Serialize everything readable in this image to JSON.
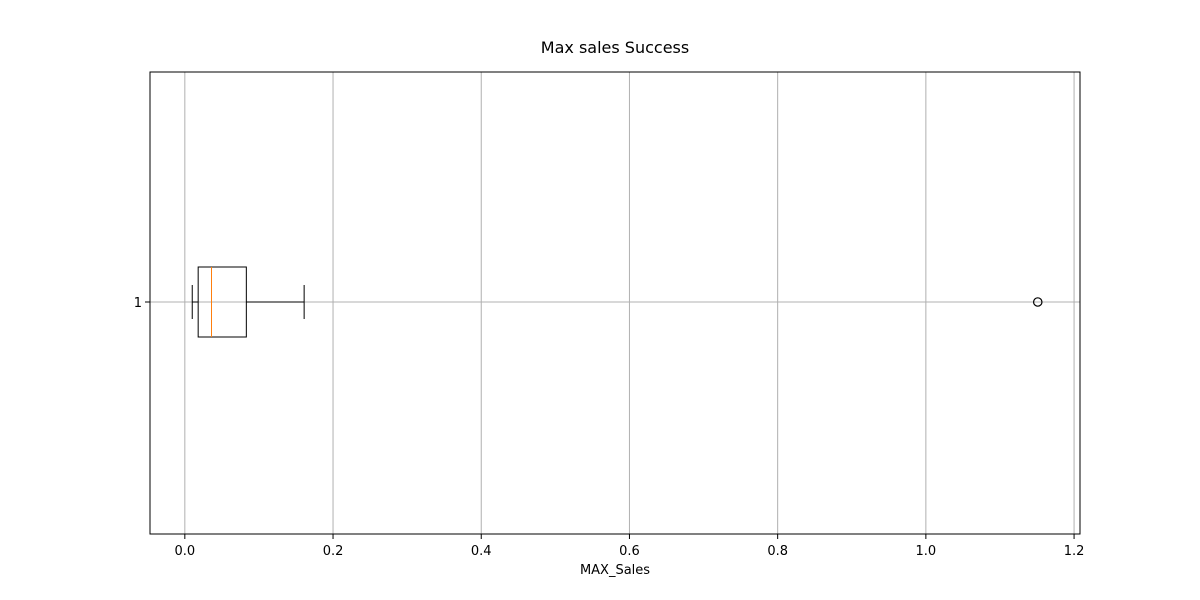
{
  "chart_data": {
    "type": "boxplot",
    "orientation": "horizontal",
    "title": "Max sales Success",
    "xlabel": "MAX_Sales",
    "ylabel": "",
    "xlim": [
      -0.047,
      1.208
    ],
    "x_ticks": [
      0.0,
      0.2,
      0.4,
      0.6,
      0.8,
      1.0,
      1.2
    ],
    "x_tick_labels": [
      "0.0",
      "0.2",
      "0.4",
      "0.6",
      "0.8",
      "1.0",
      "1.2"
    ],
    "y_ticks": [
      1
    ],
    "y_tick_labels": [
      "1"
    ],
    "grid": true,
    "boxes": [
      {
        "position": 1,
        "whisker_low": 0.01,
        "q1": 0.018,
        "median": 0.036,
        "q3": 0.083,
        "whisker_high": 0.161,
        "outliers": [
          1.151
        ]
      }
    ],
    "colors": {
      "box": "#000000",
      "median": "#ff7f0e",
      "grid": "#b0b0b0",
      "outlier": "#000000"
    }
  }
}
